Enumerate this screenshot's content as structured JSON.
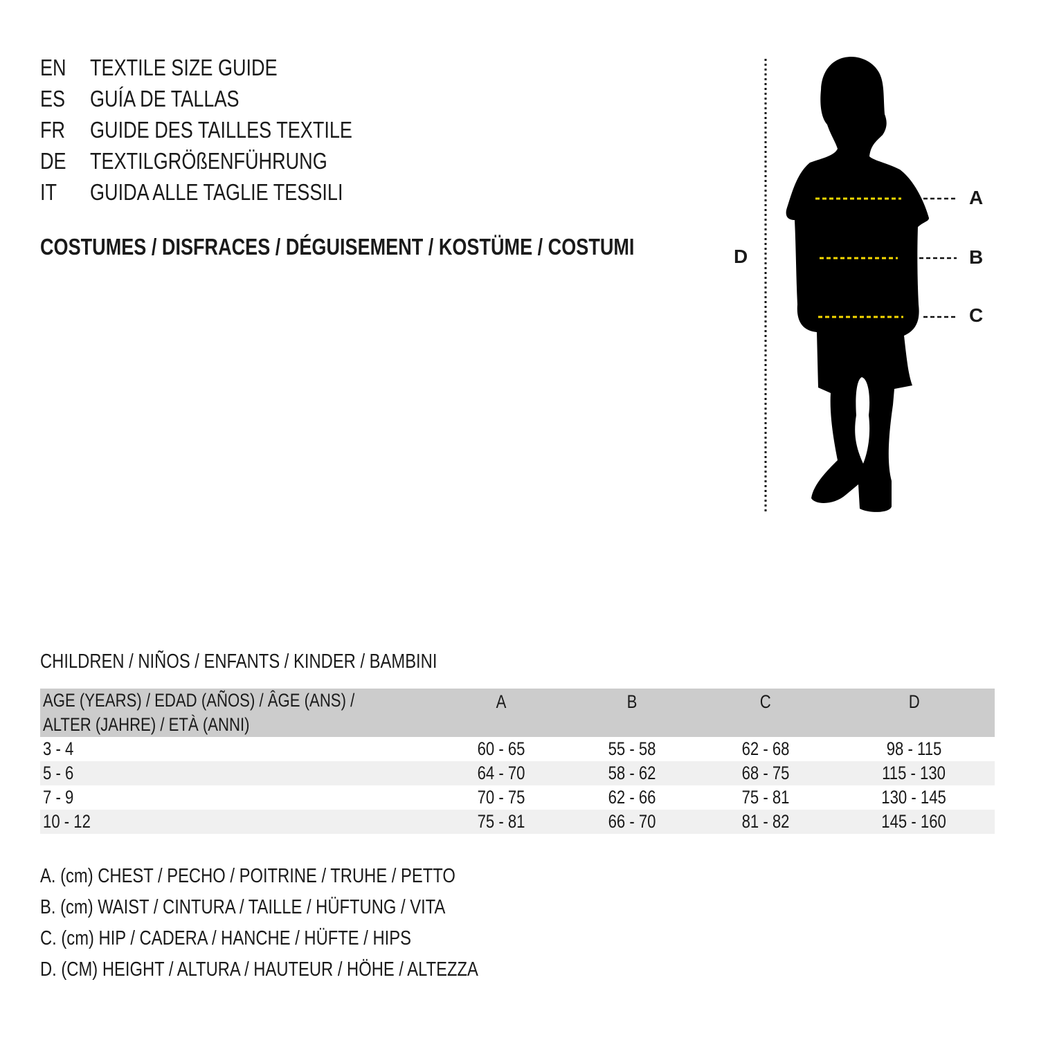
{
  "titles": [
    {
      "code": "EN",
      "text": "TEXTILE SIZE GUIDE"
    },
    {
      "code": "ES",
      "text": "GUÍA DE TALLAS"
    },
    {
      "code": "FR",
      "text": "GUIDE DES TAILLES TEXTILE"
    },
    {
      "code": "DE",
      "text": "TEXTILGRÖßENFÜHRUNG"
    },
    {
      "code": "IT",
      "text": "GUIDA ALLE TAGLIE TESSILI"
    }
  ],
  "category": "COSTUMES / DISFRACES / DÉGUISEMENT / KOSTÜME / COSTUMI",
  "figure": {
    "labels": {
      "a": "A",
      "b": "B",
      "c": "C",
      "d": "D"
    },
    "guide_color": "#f5d800"
  },
  "table": {
    "caption": "CHILDREN / NIÑOS / ENFANTS / KINDER / BAMBINI",
    "header": {
      "age_line1": "AGE (YEARS) / EDAD (AÑOS) / ÂGE (ANS) /",
      "age_line2": "ALTER (JAHRE) / ETÀ (ANNI)",
      "cols": [
        "A",
        "B",
        "C",
        "D"
      ]
    },
    "rows": [
      [
        "3 - 4",
        "60 - 65",
        "55 - 58",
        "62 - 68",
        "98 - 115"
      ],
      [
        "5 - 6",
        "64 - 70",
        "58 - 62",
        "68 - 75",
        "115 - 130"
      ],
      [
        "7 - 9",
        "70 - 75",
        "62 - 66",
        "75 - 81",
        "130 - 145"
      ],
      [
        "10 - 12",
        "75 - 81",
        "66 - 70",
        "81 - 82",
        "145 - 160"
      ]
    ]
  },
  "legend": [
    "A. (cm) CHEST / PECHO / POITRINE / TRUHE / PETTO",
    "B. (cm) WAIST / CINTURA / TAILLE / HÜFTUNG / VITA",
    "C. (cm) HIP / CADERA / HANCHE / HÜFTE / HIPS",
    "D. (CM) HEIGHT / ALTURA / HAUTEUR / HÖHE / ALTEZZA"
  ]
}
